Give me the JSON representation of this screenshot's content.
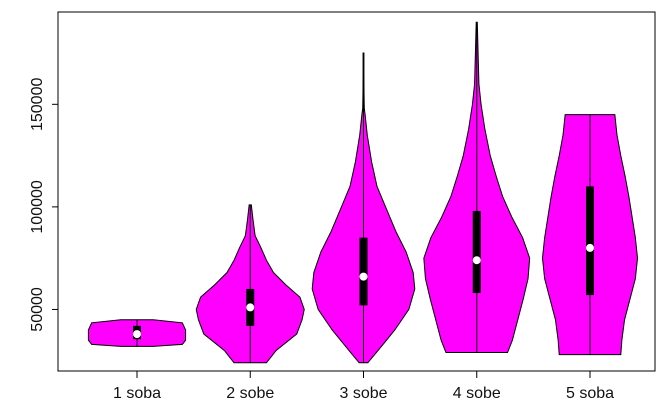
{
  "chart_data": {
    "type": "violin",
    "title": "",
    "xlabel": "",
    "ylabel": "",
    "categories": [
      "1 soba",
      "2 sobe",
      "3 sobe",
      "4 sobe",
      "5 soba"
    ],
    "yticks": [
      50000,
      100000,
      150000
    ],
    "ytick_labels": [
      "50000",
      "100000",
      "150000"
    ],
    "ylim": [
      20000,
      195000
    ],
    "grid": false,
    "legend": "none",
    "fill_color": "#ff00ff",
    "stroke_color": "#000000",
    "median_color": "#ffffff",
    "violins": [
      {
        "category": "1 soba",
        "min": 32000,
        "q1": 35500,
        "median": 38000,
        "q3": 42000,
        "max": 45000,
        "profile_y": [
          32000,
          33000,
          35000,
          40000,
          43500,
          45000
        ],
        "profile_width": [
          0.3,
          0.84,
          0.9,
          0.9,
          0.84,
          0.3
        ]
      },
      {
        "category": "2 sobe",
        "min": 24000,
        "q1": 42000,
        "median": 51000,
        "q3": 60000,
        "max": 101000,
        "profile_y": [
          24000,
          30000,
          38000,
          45000,
          50000,
          56000,
          62000,
          68000,
          74000,
          80000,
          86000,
          94000,
          101000
        ],
        "profile_width": [
          0.3,
          0.48,
          0.86,
          0.96,
          1.0,
          0.92,
          0.66,
          0.43,
          0.3,
          0.2,
          0.09,
          0.05,
          0.02
        ]
      },
      {
        "category": "3 sobe",
        "min": 24000,
        "q1": 52000,
        "median": 66000,
        "q3": 85000,
        "max": 175000,
        "profile_y": [
          24000,
          30000,
          40000,
          50000,
          60000,
          68000,
          78000,
          88000,
          98000,
          110000,
          122000,
          135000,
          145000,
          148000,
          155000,
          165000,
          175000
        ],
        "profile_width": [
          0.08,
          0.27,
          0.58,
          0.84,
          0.95,
          0.92,
          0.79,
          0.6,
          0.44,
          0.25,
          0.15,
          0.07,
          0.03,
          0.015,
          0.01,
          0.008,
          0.008
        ]
      },
      {
        "category": "4 sobe",
        "min": 29000,
        "q1": 58000,
        "median": 74000,
        "q3": 98000,
        "max": 190000,
        "profile_y": [
          29000,
          35000,
          45000,
          55000,
          65000,
          75000,
          85000,
          95000,
          105000,
          115000,
          125000,
          138000,
          150000,
          160000,
          170000,
          180000,
          190000
        ],
        "profile_width": [
          0.57,
          0.66,
          0.76,
          0.86,
          0.95,
          0.98,
          0.85,
          0.65,
          0.48,
          0.36,
          0.25,
          0.15,
          0.08,
          0.04,
          0.03,
          0.02,
          0.01
        ]
      },
      {
        "category": "5 soba",
        "min": 28000,
        "q1": 57000,
        "median": 80000,
        "q3": 110000,
        "max": 145000,
        "profile_y": [
          28000,
          35000,
          45000,
          55000,
          65000,
          75000,
          85000,
          95000,
          105000,
          115000,
          125000,
          135000,
          145000
        ],
        "profile_width": [
          0.57,
          0.59,
          0.64,
          0.74,
          0.84,
          0.88,
          0.84,
          0.78,
          0.72,
          0.65,
          0.57,
          0.5,
          0.46
        ]
      }
    ]
  }
}
